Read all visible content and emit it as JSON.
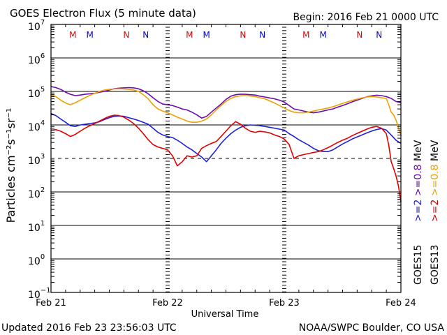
{
  "chart_data": {
    "type": "line",
    "title": "GOES Electron Flux (5 minute data)",
    "begin_label": "Begin: 2016 Feb 21 0000 UTC",
    "xlabel": "Universal Time",
    "ylabel": "Particles cm⁻²s⁻¹sr⁻¹",
    "x_unit": "hours since 2016 Feb 21 0000 UTC",
    "xlim": [
      0,
      72
    ],
    "ylim_log10": [
      -1,
      7
    ],
    "y_ticks": [
      {
        "exp": 7,
        "label": "10",
        "sup": "7"
      },
      {
        "exp": 6,
        "label": "10",
        "sup": "6"
      },
      {
        "exp": 5,
        "label": "10",
        "sup": "5"
      },
      {
        "exp": 4,
        "label": "10",
        "sup": "4"
      },
      {
        "exp": 3,
        "label": "10",
        "sup": "3"
      },
      {
        "exp": 2,
        "label": "10",
        "sup": "2"
      },
      {
        "exp": 1,
        "label": "10",
        "sup": "1"
      },
      {
        "exp": 0,
        "label": "10",
        "sup": "0"
      },
      {
        "exp": -1,
        "label": "10",
        "sup": "−1"
      }
    ],
    "x_ticks": [
      {
        "hour": 0,
        "label": "Feb 21"
      },
      {
        "hour": 24,
        "label": "Feb 22"
      },
      {
        "hour": 48,
        "label": "Feb 23"
      },
      {
        "hour": 72,
        "label": "Feb 24"
      }
    ],
    "threshold_exp": 3,
    "markers": [
      {
        "hour": 4.5,
        "text": "M",
        "color": "#dd0000"
      },
      {
        "hour": 8.0,
        "text": "M",
        "color": "#0000dd"
      },
      {
        "hour": 15.5,
        "text": "N",
        "color": "#dd0000"
      },
      {
        "hour": 19.5,
        "text": "N",
        "color": "#0000dd"
      },
      {
        "hour": 28.5,
        "text": "M",
        "color": "#dd0000"
      },
      {
        "hour": 32.0,
        "text": "M",
        "color": "#0000dd"
      },
      {
        "hour": 39.5,
        "text": "N",
        "color": "#dd0000"
      },
      {
        "hour": 43.5,
        "text": "N",
        "color": "#0000dd"
      },
      {
        "hour": 52.5,
        "text": "M",
        "color": "#dd0000"
      },
      {
        "hour": 56.0,
        "text": "M",
        "color": "#0000dd"
      },
      {
        "hour": 63.5,
        "text": "N",
        "color": "#dd0000"
      },
      {
        "hour": 67.5,
        "text": "N",
        "color": "#0000dd"
      }
    ],
    "legend": [
      {
        "sat": "GOES15",
        "entries": [
          {
            "text": ">=2",
            "color": "#2020e0"
          },
          {
            "text": ">=0.8",
            "color": "#6a0dad"
          },
          {
            "text": "MeV",
            "color": "#000000"
          }
        ]
      },
      {
        "sat": "GOES13",
        "entries": [
          {
            "text": ">=2",
            "color": "#e00000"
          },
          {
            "text": ">=0.8",
            "color": "#f0a000"
          },
          {
            "text": "MeV",
            "color": "#000000"
          }
        ]
      }
    ],
    "series": [
      {
        "name": "GOES15 >=0.8 MeV",
        "color": "#6a0dad",
        "x": [
          0,
          1,
          2,
          3,
          4,
          5,
          6,
          7,
          8,
          9,
          10,
          11,
          12,
          13,
          14,
          15,
          16,
          17,
          18,
          19,
          20,
          21,
          22,
          23,
          24,
          25,
          26,
          27,
          28,
          29,
          30,
          31,
          32,
          33,
          34,
          35,
          36,
          37,
          38,
          39,
          40,
          41,
          42,
          43,
          44,
          45,
          46,
          47,
          48,
          49,
          50,
          51,
          52,
          53,
          54,
          55,
          56,
          57,
          58,
          59,
          60,
          61,
          62,
          63,
          64,
          65,
          66,
          67,
          68,
          69,
          70,
          71,
          72
        ],
        "y": [
          140000.0,
          130000.0,
          115000.0,
          95000.0,
          82000.0,
          75000.0,
          78000.0,
          82000.0,
          85000.0,
          88000.0,
          95000.0,
          100000.0,
          110000.0,
          120000.0,
          125000.0,
          128000.0,
          130000.0,
          128000.0,
          120000.0,
          105000.0,
          85000.0,
          65000.0,
          50000.0,
          42000.0,
          40000.0,
          38000.0,
          34000.0,
          30000.0,
          28000.0,
          24000.0,
          20000.0,
          16000.0,
          18000.0,
          24000.0,
          32000.0,
          42000.0,
          58000.0,
          72000.0,
          80000.0,
          83000.0,
          82000.0,
          80000.0,
          78000.0,
          72000.0,
          68000.0,
          64000.0,
          60000.0,
          55000.0,
          48000.0,
          38000.0,
          30000.0,
          28000.0,
          26000.0,
          24000.0,
          23000.0,
          24000.0,
          26000.0,
          28000.0,
          30000.0,
          34000.0,
          38000.0,
          43000.0,
          49000.0,
          55000.0,
          62000.0,
          69000.0,
          74000.0,
          77000.0,
          75000.0,
          70000.0,
          62000.0,
          50000.0,
          46000.0
        ]
      },
      {
        "name": "GOES13 >=0.8 MeV",
        "color": "#f0a000",
        "x": [
          0,
          1,
          2,
          3,
          4,
          5,
          6,
          7,
          8,
          9,
          10,
          11,
          12,
          13,
          14,
          15,
          16,
          17,
          18,
          19,
          20,
          21,
          22,
          23,
          24,
          25,
          26,
          27,
          28,
          29,
          30,
          31,
          32,
          33,
          34,
          35,
          36,
          37,
          38,
          39,
          40,
          41,
          42,
          43,
          44,
          45,
          46,
          47,
          48,
          49,
          50,
          51,
          52,
          53,
          54,
          55,
          56,
          57,
          58,
          59,
          60,
          61,
          62,
          63,
          64,
          65,
          66,
          67,
          68,
          69,
          69.5,
          70,
          70.5,
          71,
          71.5,
          72
        ],
        "y": [
          80000.0,
          70000.0,
          55000.0,
          45000.0,
          40000.0,
          46000.0,
          55000.0,
          65000.0,
          76000.0,
          88000.0,
          100000.0,
          110000.0,
          115000.0,
          118000.0,
          120000.0,
          118000.0,
          115000.0,
          110000.0,
          100000.0,
          80000.0,
          60000.0,
          40000.0,
          30000.0,
          26000.0,
          23000.0,
          20000.0,
          17000.0,
          15000.0,
          13000.0,
          12000.0,
          12000.0,
          13000.0,
          15000.0,
          20000.0,
          28000.0,
          38000.0,
          50000.0,
          62000.0,
          70000.0,
          74000.0,
          75000.0,
          73000.0,
          70000.0,
          65000.0,
          60000.0,
          52000.0,
          45000.0,
          38000.0,
          32000.0,
          27000.0,
          24000.0,
          23000.0,
          23000.0,
          24000.0,
          26000.0,
          28000.0,
          30000.0,
          32000.0,
          35000.0,
          39000.0,
          44000.0,
          49000.0,
          54000.0,
          59000.0,
          64000.0,
          68000.0,
          70000.0,
          68000.0,
          65000.0,
          62000.0,
          40000.0,
          24000.0,
          20000.0,
          14000.0,
          8000.0,
          5000.0
        ]
      },
      {
        "name": "GOES15 >=2 MeV",
        "color": "#2020e0",
        "x": [
          0,
          1,
          2,
          3,
          4,
          5,
          6,
          7,
          8,
          9,
          10,
          11,
          12,
          13,
          14,
          15,
          16,
          17,
          18,
          19,
          20,
          21,
          22,
          23,
          24,
          25,
          26,
          27,
          28,
          29,
          30,
          31,
          32,
          33,
          34,
          35,
          36,
          37,
          38,
          39,
          40,
          41,
          42,
          43,
          44,
          45,
          46,
          47,
          48,
          49,
          50,
          51,
          52,
          53,
          54,
          55,
          56,
          57,
          58,
          59,
          60,
          61,
          62,
          63,
          64,
          65,
          66,
          67,
          68,
          69,
          70,
          71,
          72
        ],
        "y": [
          22000.0,
          19000.0,
          15000.0,
          12000.0,
          9500.0,
          9000.0,
          10000.0,
          10500.0,
          11000.0,
          11500.0,
          12500.0,
          14500.0,
          16500.0,
          18000.0,
          18500.0,
          18000.0,
          16500.0,
          15000.0,
          13500.0,
          12000.0,
          10500.0,
          8000.0,
          6000.0,
          5000.0,
          4500.0,
          4200.0,
          3500.0,
          2800.0,
          2200.0,
          1800.0,
          1400.0,
          1100.0,
          800.0,
          1200.0,
          1800.0,
          2800.0,
          4000.0,
          5500.0,
          7000.0,
          8500.0,
          9500.0,
          10000.0,
          9800.0,
          9500.0,
          9000.0,
          8500.0,
          8000.0,
          7500.0,
          7000.0,
          5500.0,
          4500.0,
          3600.0,
          3000.0,
          2500.0,
          2000.0,
          1700.0,
          1600.0,
          1600.0,
          1800.0,
          2200.0,
          2700.0,
          3200.0,
          3800.0,
          4400.0,
          5000.0,
          5800.0,
          6600.0,
          7300.0,
          7800.0,
          7000.0,
          5000.0,
          3500.0,
          2800.0
        ]
      },
      {
        "name": "GOES13 >=2 MeV",
        "color": "#e00000",
        "x": [
          0,
          1,
          2,
          3,
          4,
          5,
          6,
          7,
          8,
          9,
          10,
          11,
          12,
          13,
          14,
          15,
          16,
          17,
          18,
          19,
          20,
          21,
          22,
          23,
          24,
          25,
          26,
          27,
          28,
          29,
          30,
          31,
          32,
          33,
          34,
          35,
          36,
          37,
          38,
          39,
          40,
          41,
          42,
          43,
          44,
          45,
          46,
          47,
          48,
          49,
          50,
          51,
          52,
          53,
          54,
          55,
          56,
          57,
          58,
          59,
          60,
          61,
          62,
          63,
          64,
          65,
          66,
          67,
          68,
          69,
          69.5,
          70,
          70.5,
          71,
          71.5,
          72
        ],
        "y": [
          7000.0,
          7200.0,
          6500.0,
          5500.0,
          4500.0,
          5200.0,
          6500.0,
          8000.0,
          9500.0,
          11000.0,
          13000.0,
          15500.0,
          18000.0,
          19500.0,
          19000.0,
          17000.0,
          14000.0,
          11000.0,
          8000.0,
          5500.0,
          3600.0,
          2600.0,
          2200.0,
          2000.0,
          1800.0,
          1200.0,
          600.0,
          800.0,
          1200.0,
          1100.0,
          1200.0,
          2000.0,
          2400.0,
          2800.0,
          3200.0,
          4500.0,
          6500.0,
          9500.0,
          12500.0,
          10500.0,
          8000.0,
          6500.0,
          6000.0,
          6500.0,
          6200.0,
          5800.0,
          5000.0,
          4500.0,
          3800.0,
          2600.0,
          1000.0,
          1200.0,
          1300.0,
          1400.0,
          1500.0,
          1600.0,
          1800.0,
          2100.0,
          2500.0,
          3000.0,
          3500.0,
          4000.0,
          4800.0,
          5600.0,
          6500.0,
          7500.0,
          8500.0,
          9000.0,
          8000.0,
          5500.0,
          2500.0,
          800.0,
          500.0,
          300.0,
          150.0,
          50.0
        ]
      }
    ]
  },
  "footer": {
    "updated": "Updated 2016 Feb 23 23:56:03 UTC",
    "credit": "NOAA/SWPC Boulder, CO USA"
  }
}
